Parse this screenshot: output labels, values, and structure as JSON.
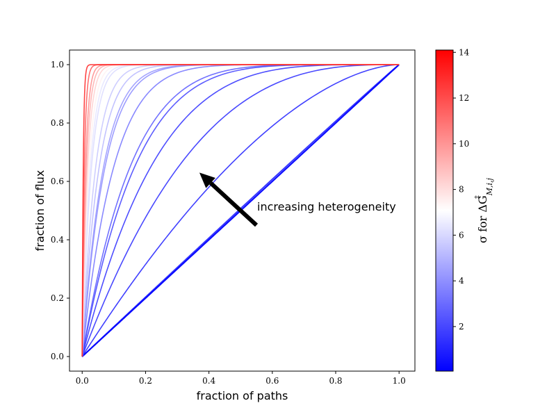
{
  "chart_data": {
    "type": "line",
    "xlabel": "fraction of paths",
    "ylabel": "fraction of flux",
    "xlim": [
      -0.04,
      1.05
    ],
    "ylim": [
      -0.05,
      1.05
    ],
    "xticks": [
      0.0,
      0.2,
      0.4,
      0.6,
      0.8,
      1.0
    ],
    "xtick_labels": [
      "0.0",
      "0.2",
      "0.4",
      "0.6",
      "0.8",
      "1.0"
    ],
    "yticks": [
      0.0,
      0.2,
      0.4,
      0.6,
      0.8,
      1.0
    ],
    "ytick_labels": [
      "0.0",
      "0.2",
      "0.4",
      "0.6",
      "0.8",
      "1.0"
    ],
    "grid": false,
    "curve_family": "y = 1 - (1 - x)^k",
    "series": [
      {
        "sigma": 0.05,
        "k": 1.0
      },
      {
        "sigma": 0.1,
        "k": 1.0
      },
      {
        "sigma": 0.2,
        "k": 1.02
      },
      {
        "sigma": 0.5,
        "k": 1.7
      },
      {
        "sigma": 0.8,
        "k": 2.9
      },
      {
        "sigma": 1.0,
        "k": 4.3
      },
      {
        "sigma": 1.5,
        "k": 5.8
      },
      {
        "sigma": 2.2,
        "k": 6.4
      },
      {
        "sigma": 3.0,
        "k": 10
      },
      {
        "sigma": 3.7,
        "k": 14
      },
      {
        "sigma": 4.0,
        "k": 15
      },
      {
        "sigma": 5.0,
        "k": 19
      },
      {
        "sigma": 5.4,
        "k": 24
      },
      {
        "sigma": 6.0,
        "k": 35
      },
      {
        "sigma": 6.3,
        "k": 40
      },
      {
        "sigma": 7.5,
        "k": 48
      },
      {
        "sigma": 8.5,
        "k": 60
      },
      {
        "sigma": 9.5,
        "k": 75
      },
      {
        "sigma": 10.5,
        "k": 95
      },
      {
        "sigma": 12.0,
        "k": 150
      },
      {
        "sigma": 13.5,
        "k": 300
      }
    ],
    "annotation": {
      "text": "increasing heterogeneity",
      "arrow_tail": [
        0.55,
        0.45
      ],
      "arrow_head": [
        0.37,
        0.63
      ]
    },
    "colorbar": {
      "label": "σ for ΔG",
      "label_sup": "‡",
      "label_sub": "M,i,j",
      "range": [
        0.05,
        14.1
      ],
      "ticks": [
        2,
        4,
        6,
        8,
        10,
        12,
        14
      ],
      "tick_labels": [
        "2",
        "4",
        "6",
        "8",
        "10",
        "12",
        "14"
      ],
      "colormap": "bwr",
      "color_low": "#0000ff",
      "color_mid": "#ffffff",
      "color_high": "#ff0000"
    }
  }
}
